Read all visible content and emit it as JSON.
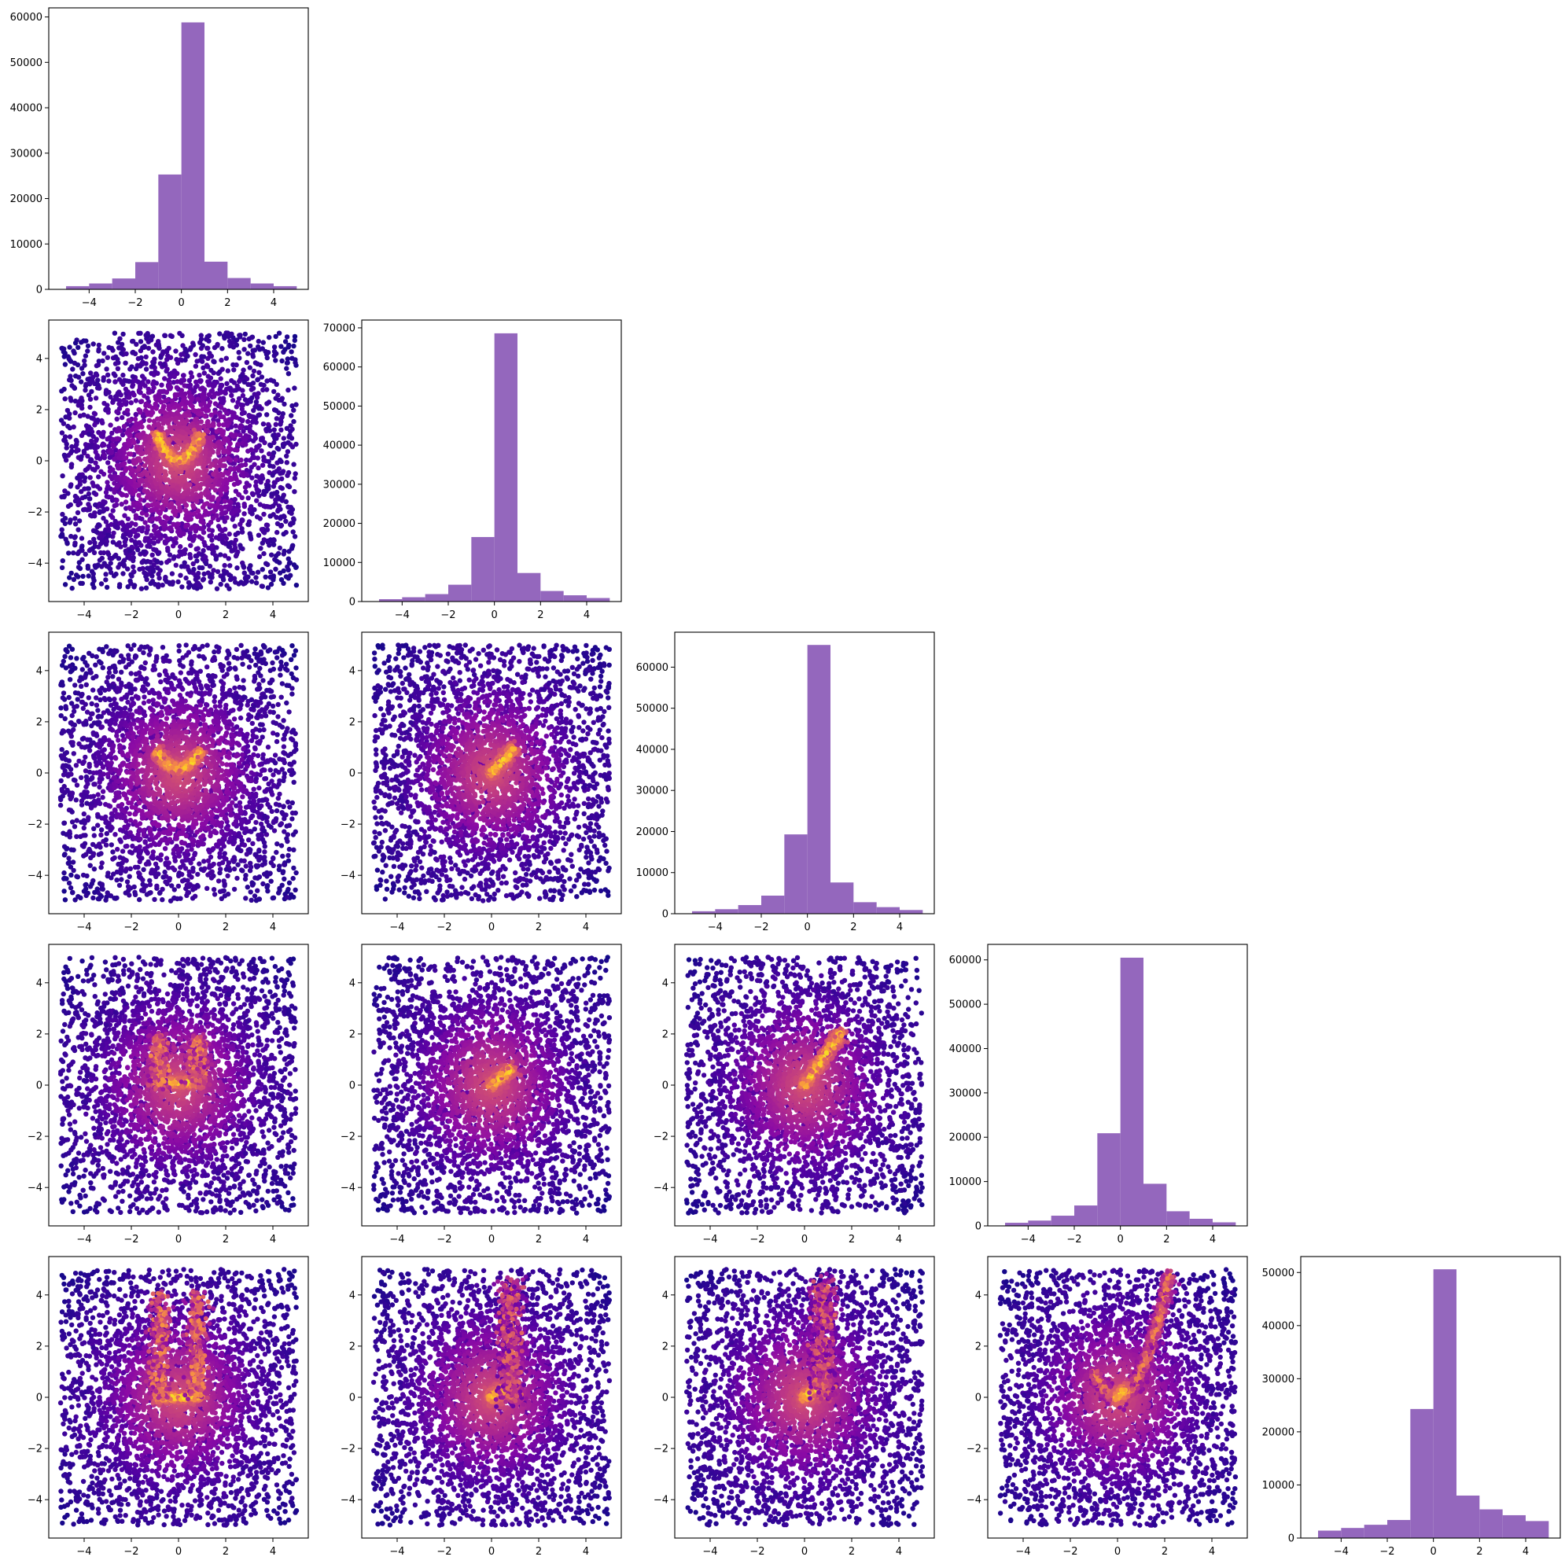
{
  "chart_data": {
    "type": "corner-plot",
    "n_dims": 5,
    "axis_range": [
      -5,
      5
    ],
    "x_ticks": [
      -4,
      -2,
      0,
      2,
      4
    ],
    "y_ticks": [
      -4,
      -2,
      0,
      2,
      4
    ],
    "bin_edges": [
      -5,
      -4,
      -3,
      -2,
      -1,
      0,
      1,
      2,
      3,
      4,
      5
    ],
    "hist_color": "#9467bd",
    "scatter_colormap": "plasma",
    "scatter_low_color": "#0d0887",
    "scatter_high_color": "#f0f921",
    "histograms": [
      {
        "dim": 0,
        "counts": [
          700,
          1300,
          2400,
          6000,
          25300,
          58800,
          6100,
          2500,
          1300,
          700
        ],
        "ylim": [
          0,
          62000
        ],
        "y_ticks": [
          0,
          10000,
          20000,
          30000,
          40000,
          50000,
          60000
        ]
      },
      {
        "dim": 1,
        "counts": [
          600,
          1100,
          1900,
          4300,
          16500,
          68600,
          7300,
          2700,
          1600,
          900
        ],
        "ylim": [
          0,
          72000
        ],
        "y_ticks": [
          0,
          10000,
          20000,
          30000,
          40000,
          50000,
          60000,
          70000
        ]
      },
      {
        "dim": 2,
        "counts": [
          600,
          1100,
          2100,
          4400,
          19300,
          65400,
          7600,
          2800,
          1600,
          900
        ],
        "ylim": [
          0,
          68500
        ],
        "y_ticks": [
          0,
          10000,
          20000,
          30000,
          40000,
          50000,
          60000
        ]
      },
      {
        "dim": 3,
        "counts": [
          700,
          1200,
          2300,
          4600,
          20900,
          60500,
          9500,
          3300,
          1600,
          800
        ],
        "ylim": [
          0,
          63500
        ],
        "y_ticks": [
          0,
          10000,
          20000,
          30000,
          40000,
          50000,
          60000
        ]
      },
      {
        "dim": 4,
        "counts": [
          1400,
          1900,
          2500,
          3400,
          24300,
          50600,
          8000,
          5400,
          4300,
          3200
        ],
        "ylim": [
          0,
          53000
        ],
        "y_ticks": [
          0,
          10000,
          20000,
          30000,
          40000,
          50000
        ]
      }
    ],
    "scatter_panels": [
      {
        "x_dim": 0,
        "y_dim": 1,
        "density_feature": "u-shaped arc",
        "arc_y_at_center": 0.0,
        "arc_y_at_edge": 1.0
      },
      {
        "x_dim": 0,
        "y_dim": 2,
        "density_feature": "u-shaped arc",
        "arc_y_at_center": 0.2,
        "arc_y_at_edge": 0.8
      },
      {
        "x_dim": 1,
        "y_dim": 2,
        "density_feature": "diagonal streak",
        "streak_start": [
          0,
          0
        ],
        "streak_end": [
          0.9,
          0.9
        ]
      },
      {
        "x_dim": 0,
        "y_dim": 3,
        "density_feature": "flat arc with upward plume",
        "arc_y": 0.1,
        "plume_top": 1.8
      },
      {
        "x_dim": 1,
        "y_dim": 3,
        "density_feature": "short diagonal streak",
        "streak_start": [
          0,
          0
        ],
        "streak_end": [
          0.8,
          0.6
        ]
      },
      {
        "x_dim": 2,
        "y_dim": 3,
        "density_feature": "diagonal streak",
        "streak_start": [
          0,
          0
        ],
        "streak_end": [
          1.5,
          2.0
        ]
      },
      {
        "x_dim": 0,
        "y_dim": 4,
        "density_feature": "flat arc with vertical column",
        "arc_y": 0.0,
        "plume_top": 4.0
      },
      {
        "x_dim": 1,
        "y_dim": 4,
        "density_feature": "blob with vertical column",
        "streak_start": [
          0,
          0
        ],
        "streak_end": [
          0.7,
          0.4
        ]
      },
      {
        "x_dim": 2,
        "y_dim": 4,
        "density_feature": "blob with vertical column",
        "streak_start": [
          0,
          0
        ],
        "streak_end": [
          0.7,
          0.4
        ]
      },
      {
        "x_dim": 3,
        "y_dim": 4,
        "density_feature": "parabola y = x squared",
        "vertex": [
          0,
          0
        ]
      }
    ]
  }
}
